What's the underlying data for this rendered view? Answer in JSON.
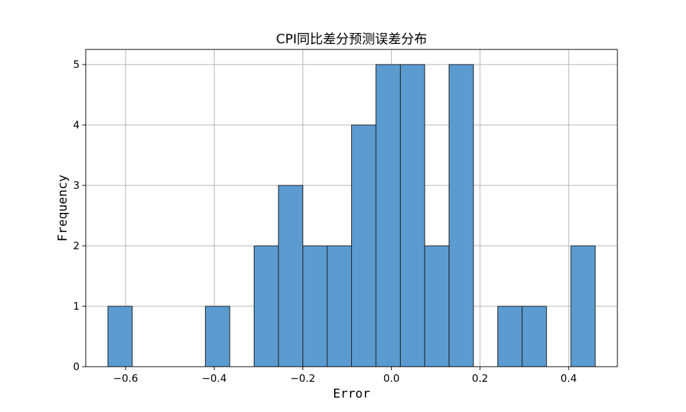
{
  "chart_data": {
    "type": "bar",
    "subtype": "histogram",
    "title": "CPI同比差分预测误差分布",
    "xlabel": "Error",
    "ylabel": "Frequency",
    "xlim": [
      -0.69,
      0.51
    ],
    "ylim": [
      0,
      5.25
    ],
    "xticks": [
      -0.6,
      -0.4,
      -0.2,
      0.0,
      0.2,
      0.4
    ],
    "xtick_labels": [
      "−0.6",
      "−0.4",
      "−0.2",
      "0.0",
      "0.2",
      "0.4"
    ],
    "yticks": [
      0,
      1,
      2,
      3,
      4,
      5
    ],
    "ytick_labels": [
      "0",
      "1",
      "2",
      "3",
      "4",
      "5"
    ],
    "grid": true,
    "bar_color": "#5b9bcf",
    "edge_color": "#1a1a1a",
    "bins": [
      {
        "x0": -0.64,
        "x1": -0.585,
        "count": 1
      },
      {
        "x0": -0.585,
        "x1": -0.53,
        "count": 0
      },
      {
        "x0": -0.53,
        "x1": -0.475,
        "count": 0
      },
      {
        "x0": -0.475,
        "x1": -0.42,
        "count": 0
      },
      {
        "x0": -0.42,
        "x1": -0.365,
        "count": 1
      },
      {
        "x0": -0.365,
        "x1": -0.31,
        "count": 0
      },
      {
        "x0": -0.31,
        "x1": -0.255,
        "count": 2
      },
      {
        "x0": -0.255,
        "x1": -0.2,
        "count": 3
      },
      {
        "x0": -0.2,
        "x1": -0.145,
        "count": 2
      },
      {
        "x0": -0.145,
        "x1": -0.09,
        "count": 2
      },
      {
        "x0": -0.09,
        "x1": -0.035,
        "count": 4
      },
      {
        "x0": -0.035,
        "x1": 0.02,
        "count": 5
      },
      {
        "x0": 0.02,
        "x1": 0.075,
        "count": 5
      },
      {
        "x0": 0.075,
        "x1": 0.13,
        "count": 2
      },
      {
        "x0": 0.13,
        "x1": 0.185,
        "count": 5
      },
      {
        "x0": 0.185,
        "x1": 0.24,
        "count": 0
      },
      {
        "x0": 0.24,
        "x1": 0.295,
        "count": 1
      },
      {
        "x0": 0.295,
        "x1": 0.35,
        "count": 1
      },
      {
        "x0": 0.35,
        "x1": 0.405,
        "count": 0
      },
      {
        "x0": 0.405,
        "x1": 0.46,
        "count": 2
      }
    ]
  }
}
